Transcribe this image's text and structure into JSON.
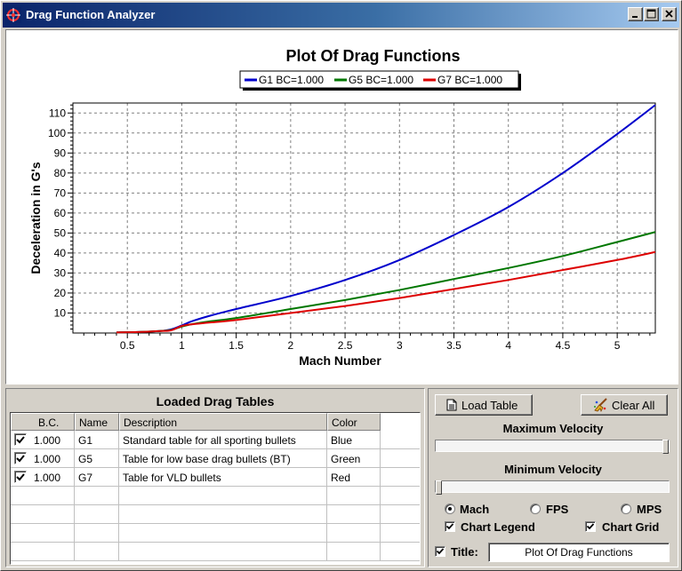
{
  "window": {
    "title": "Drag Function Analyzer",
    "icon": "target-app-icon",
    "controls": [
      "minimize-icon",
      "maximize-icon",
      "close-icon"
    ]
  },
  "chart_data": {
    "type": "line",
    "title": "Plot Of Drag Functions",
    "xlabel": "Mach Number",
    "ylabel": "Deceleration in G's",
    "xlim": [
      0.0,
      5.35
    ],
    "ylim": [
      0,
      115
    ],
    "xticks": [
      0.5,
      1,
      1.5,
      2,
      2.5,
      3,
      3.5,
      4,
      4.5,
      5
    ],
    "xtick_labels": [
      "0.5",
      "1",
      "1.5",
      "2",
      "2.5",
      "3",
      "3.5",
      "4",
      "4.5",
      "5"
    ],
    "yticks": [
      10,
      20,
      30,
      40,
      50,
      60,
      70,
      80,
      90,
      100,
      110
    ],
    "ytick_labels": [
      "10",
      "20",
      "30",
      "40",
      "50",
      "60",
      "70",
      "80",
      "90",
      "100",
      "110"
    ],
    "grid": true,
    "legend_position": "top-center",
    "series": [
      {
        "name": "G1 BC=1.000",
        "color": "#0000cc",
        "x": [
          0.4,
          0.6,
          0.8,
          0.9,
          1.0,
          1.1,
          1.25,
          1.5,
          2.0,
          2.5,
          3.0,
          3.5,
          4.0,
          4.5,
          5.0,
          5.35
        ],
        "y": [
          0.3,
          0.5,
          1,
          1.8,
          3.8,
          6,
          8.5,
          12,
          18.5,
          26.5,
          36.5,
          49,
          63,
          80,
          99.5,
          114
        ]
      },
      {
        "name": "G5 BC=1.000",
        "color": "#007700",
        "x": [
          0.4,
          0.6,
          0.8,
          0.9,
          1.0,
          1.1,
          1.25,
          1.5,
          2.0,
          2.5,
          3.0,
          3.5,
          4.0,
          4.5,
          5.0,
          5.35
        ],
        "y": [
          0.3,
          0.5,
          1,
          1.5,
          3.2,
          4.5,
          5.8,
          7.5,
          12,
          16.5,
          21.5,
          27,
          32.5,
          38.5,
          45.5,
          50.5
        ]
      },
      {
        "name": "G7 BC=1.000",
        "color": "#dd0000",
        "x": [
          0.4,
          0.6,
          0.8,
          0.9,
          1.0,
          1.1,
          1.25,
          1.5,
          2.0,
          2.5,
          3.0,
          3.5,
          4.0,
          4.5,
          5.0,
          5.35
        ],
        "y": [
          0.3,
          0.5,
          1,
          1.3,
          3.5,
          4.4,
          5.2,
          6.5,
          10,
          13.5,
          17.5,
          22,
          26.5,
          31.5,
          36.5,
          40.5
        ]
      }
    ]
  },
  "tables_panel": {
    "title": "Loaded Drag Tables",
    "columns": [
      "B.C.",
      "Name",
      "Description",
      "Color"
    ],
    "rows": [
      {
        "checked": true,
        "bc": "1.000",
        "name": "G1",
        "description": "Standard table for all sporting bullets",
        "color": "Blue"
      },
      {
        "checked": true,
        "bc": "1.000",
        "name": "G5",
        "description": "Table for low base drag bullets (BT)",
        "color": "Green"
      },
      {
        "checked": true,
        "bc": "1.000",
        "name": "G7",
        "description": "Table for VLD bullets",
        "color": "Red"
      }
    ]
  },
  "controls": {
    "load_table_label": "Load Table",
    "load_table_icon": "document-icon",
    "clear_all_label": "Clear All",
    "clear_all_icon": "broom-icon",
    "max_velocity_label": "Maximum Velocity",
    "max_velocity_position": 1.0,
    "min_velocity_label": "Minimum Velocity",
    "min_velocity_position": 0.0,
    "units": {
      "options": [
        "Mach",
        "FPS",
        "MPS"
      ],
      "selected": "Mach"
    },
    "chart_legend_label": "Chart Legend",
    "chart_legend_checked": true,
    "chart_grid_label": "Chart Grid",
    "chart_grid_checked": true,
    "title_label": "Title:",
    "title_checked": true,
    "title_value": "Plot Of Drag Functions"
  }
}
